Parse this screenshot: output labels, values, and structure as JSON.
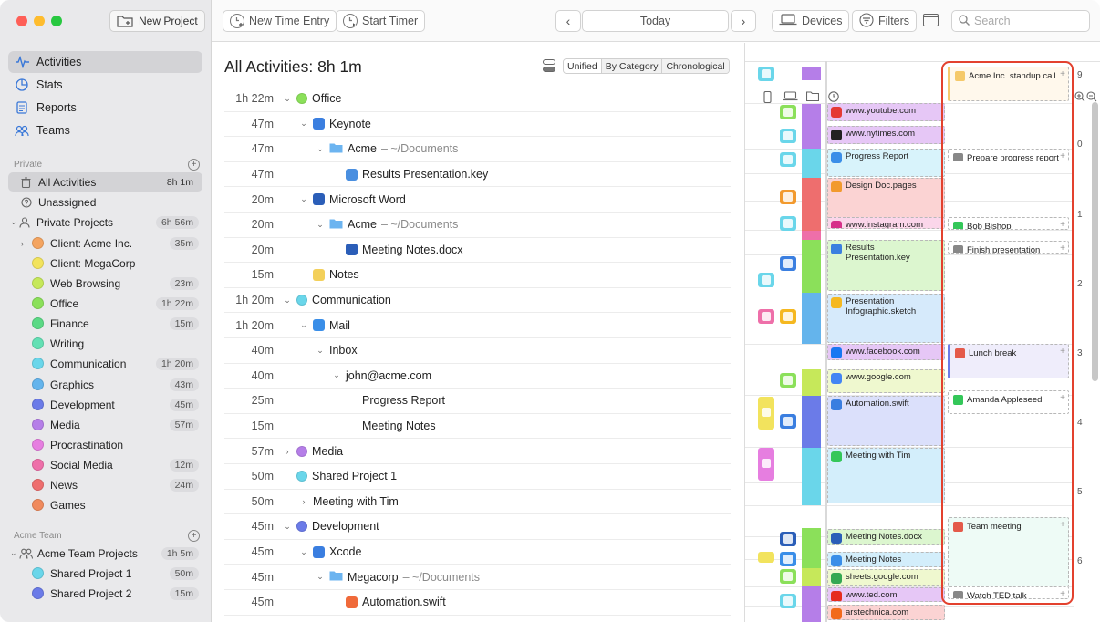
{
  "window_title": "All Activities: 8h 1m",
  "sidebar": {
    "new_project": "New Project",
    "nav": [
      {
        "label": "Activities",
        "icon": "activity-pulse-icon"
      },
      {
        "label": "Stats",
        "icon": "stats-icon"
      },
      {
        "label": "Reports",
        "icon": "reports-icon"
      },
      {
        "label": "Teams",
        "icon": "teams-icon"
      }
    ],
    "private_header": "Private",
    "all_activities": {
      "label": "All Activities",
      "count": "8h 1m"
    },
    "unassigned": {
      "label": "Unassigned"
    },
    "private_projects": {
      "label": "Private Projects",
      "count": "6h 56m"
    },
    "projects": [
      {
        "label": "Client: Acme Inc.",
        "count": "35m",
        "color": "#f4a460"
      },
      {
        "label": "Client: MegaCorp",
        "count": "",
        "color": "#f2e35d"
      },
      {
        "label": "Web Browsing",
        "count": "23m",
        "color": "#c6e85a"
      },
      {
        "label": "Office",
        "count": "1h 22m",
        "color": "#8be05a"
      },
      {
        "label": "Finance",
        "count": "15m",
        "color": "#5bd985"
      },
      {
        "label": "Writing",
        "count": "",
        "color": "#63e0b4"
      },
      {
        "label": "Communication",
        "count": "1h 20m",
        "color": "#6ad6ea"
      },
      {
        "label": "Graphics",
        "count": "43m",
        "color": "#64b4ec"
      },
      {
        "label": "Development",
        "count": "45m",
        "color": "#6b7be8"
      },
      {
        "label": "Media",
        "count": "57m",
        "color": "#b57ee8"
      },
      {
        "label": "Procrastination",
        "count": "",
        "color": "#e67ee0"
      },
      {
        "label": "Social Media",
        "count": "12m",
        "color": "#ee6fa9"
      },
      {
        "label": "News",
        "count": "24m",
        "color": "#ee6e6e"
      },
      {
        "label": "Games",
        "count": "",
        "color": "#f08a5d"
      }
    ],
    "team_header": "Acme Team",
    "team_projects": {
      "label": "Acme Team Projects",
      "count": "1h 5m"
    },
    "team_items": [
      {
        "label": "Shared Project 1",
        "count": "50m",
        "color": "#6ad6ea"
      },
      {
        "label": "Shared Project 2",
        "count": "15m",
        "color": "#6b7be8"
      }
    ]
  },
  "toolbar": {
    "new_time_entry": "New Time Entry",
    "start_timer": "Start Timer",
    "prev": "‹",
    "today": "Today",
    "next": "›",
    "devices": "Devices",
    "filters": "Filters",
    "search_placeholder": "Search"
  },
  "main": {
    "title": "All Activities: 8h 1m",
    "views": [
      "Unified",
      "By Category",
      "Chronological"
    ],
    "rows": [
      {
        "dur": "1h 22m",
        "level": 0,
        "chev": "down",
        "kind": "dot",
        "color": "#8be05a",
        "label": "Office"
      },
      {
        "dur": "47m",
        "level": 1,
        "chev": "down",
        "kind": "icon",
        "color": "#3b7fe0",
        "label": "Keynote"
      },
      {
        "dur": "47m",
        "level": 2,
        "chev": "down",
        "kind": "folder",
        "color": "#6cb4f0",
        "label": "Acme",
        "path": " – ~/Documents"
      },
      {
        "dur": "47m",
        "level": 3,
        "chev": "",
        "kind": "icon",
        "color": "#4a8fe0",
        "label": "Results Presentation.key"
      },
      {
        "dur": "20m",
        "level": 1,
        "chev": "down",
        "kind": "icon",
        "color": "#2b5eb8",
        "label": "Microsoft Word"
      },
      {
        "dur": "20m",
        "level": 2,
        "chev": "down",
        "kind": "folder",
        "color": "#6cb4f0",
        "label": "Acme",
        "path": " – ~/Documents"
      },
      {
        "dur": "20m",
        "level": 3,
        "chev": "",
        "kind": "icon",
        "color": "#2b5eb8",
        "label": "Meeting Notes.docx"
      },
      {
        "dur": "15m",
        "level": 1,
        "chev": "",
        "kind": "icon",
        "color": "#f3d05a",
        "label": "Notes"
      },
      {
        "dur": "1h 20m",
        "level": 0,
        "chev": "down",
        "kind": "dot",
        "color": "#6ad6ea",
        "label": "Communication"
      },
      {
        "dur": "1h 20m",
        "level": 1,
        "chev": "down",
        "kind": "icon",
        "color": "#3a8ee8",
        "label": "Mail"
      },
      {
        "dur": "40m",
        "level": 2,
        "chev": "down",
        "kind": "none",
        "color": "",
        "label": "Inbox"
      },
      {
        "dur": "40m",
        "level": 3,
        "chev": "down",
        "kind": "none",
        "color": "",
        "label": "john@acme.com"
      },
      {
        "dur": "25m",
        "level": 4,
        "chev": "",
        "kind": "none",
        "color": "",
        "label": "Progress Report"
      },
      {
        "dur": "15m",
        "level": 4,
        "chev": "",
        "kind": "none",
        "color": "",
        "label": "Meeting Notes"
      },
      {
        "dur": "57m",
        "level": 0,
        "chev": "right",
        "kind": "dot",
        "color": "#b57ee8",
        "label": "Media"
      },
      {
        "dur": "50m",
        "level": 0,
        "chev": "",
        "kind": "dot",
        "color": "#6ad6ea",
        "label": "Shared Project 1"
      },
      {
        "dur": "50m",
        "level": 1,
        "chev": "right",
        "kind": "none",
        "color": "",
        "label": "Meeting with Tim"
      },
      {
        "dur": "45m",
        "level": 0,
        "chev": "down",
        "kind": "dot",
        "color": "#6b7be8",
        "label": "Development"
      },
      {
        "dur": "45m",
        "level": 1,
        "chev": "down",
        "kind": "icon",
        "color": "#3a7ee0",
        "label": "Xcode"
      },
      {
        "dur": "45m",
        "level": 2,
        "chev": "down",
        "kind": "folder",
        "color": "#6cb4f0",
        "label": "Megacorp",
        "path": " – ~/Documents"
      },
      {
        "dur": "45m",
        "level": 3,
        "chev": "",
        "kind": "icon",
        "color": "#f06a3a",
        "label": "Automation.swift"
      }
    ]
  },
  "timeline": {
    "hours": [
      "9",
      "0",
      "1",
      "2",
      "3",
      "4",
      "5",
      "6"
    ],
    "apps": [
      {
        "label": "www.youtube.com",
        "color": "#e53935",
        "icon": "youtube-icon"
      },
      {
        "label": "www.nytimes.com",
        "color": "#222222",
        "icon": "nytimes-icon"
      },
      {
        "label": "Progress Report",
        "color": "#3a8ee8",
        "icon": "mail-icon"
      },
      {
        "label": "Design Doc.pages",
        "color": "#f29a2e",
        "icon": "pages-icon"
      },
      {
        "label": "www.instagram.com",
        "color": "#d6308a",
        "icon": "instagram-icon"
      },
      {
        "label": "Results Presentation.key",
        "color": "#3b7fe0",
        "icon": "keynote-icon"
      },
      {
        "label": "Presentation Infographic.sketch",
        "color": "#f5b820",
        "icon": "sketch-icon"
      },
      {
        "label": "www.facebook.com",
        "color": "#1877f2",
        "icon": "facebook-icon"
      },
      {
        "label": "www.google.com",
        "color": "#4285f4",
        "icon": "google-icon"
      },
      {
        "label": "Automation.swift",
        "color": "#3a7ee0",
        "icon": "xcode-icon"
      },
      {
        "label": "Meeting with Tim",
        "color": "#34c759",
        "icon": "facetime-icon"
      },
      {
        "label": "Meeting Notes.docx",
        "color": "#2b5eb8",
        "icon": "word-icon"
      },
      {
        "label": "Meeting Notes",
        "color": "#3a8ee8",
        "icon": "mail-icon"
      },
      {
        "label": "sheets.google.com",
        "color": "#34a853",
        "icon": "chrome-icon"
      },
      {
        "label": "www.ted.com",
        "color": "#e62b1e",
        "icon": "ted-icon"
      },
      {
        "label": "arstechnica.com",
        "color": "#f26a1b",
        "icon": "arstechnica-icon"
      }
    ],
    "calendar": [
      {
        "label": "Acme Inc. standup call",
        "icon": "calendar-icon"
      },
      {
        "label": "Prepare progress report",
        "icon": "reminder-icon"
      },
      {
        "label": "Bob Bishop",
        "icon": "phone-icon"
      },
      {
        "label": "Finish presentation",
        "icon": "reminder-icon"
      },
      {
        "label": "Lunch break",
        "icon": "calendar-icon"
      },
      {
        "label": "Amanda Appleseed",
        "icon": "phone-icon"
      },
      {
        "label": "Team meeting",
        "icon": "calendar-icon"
      },
      {
        "label": "Watch TED talk",
        "icon": "reminder-icon"
      }
    ]
  }
}
